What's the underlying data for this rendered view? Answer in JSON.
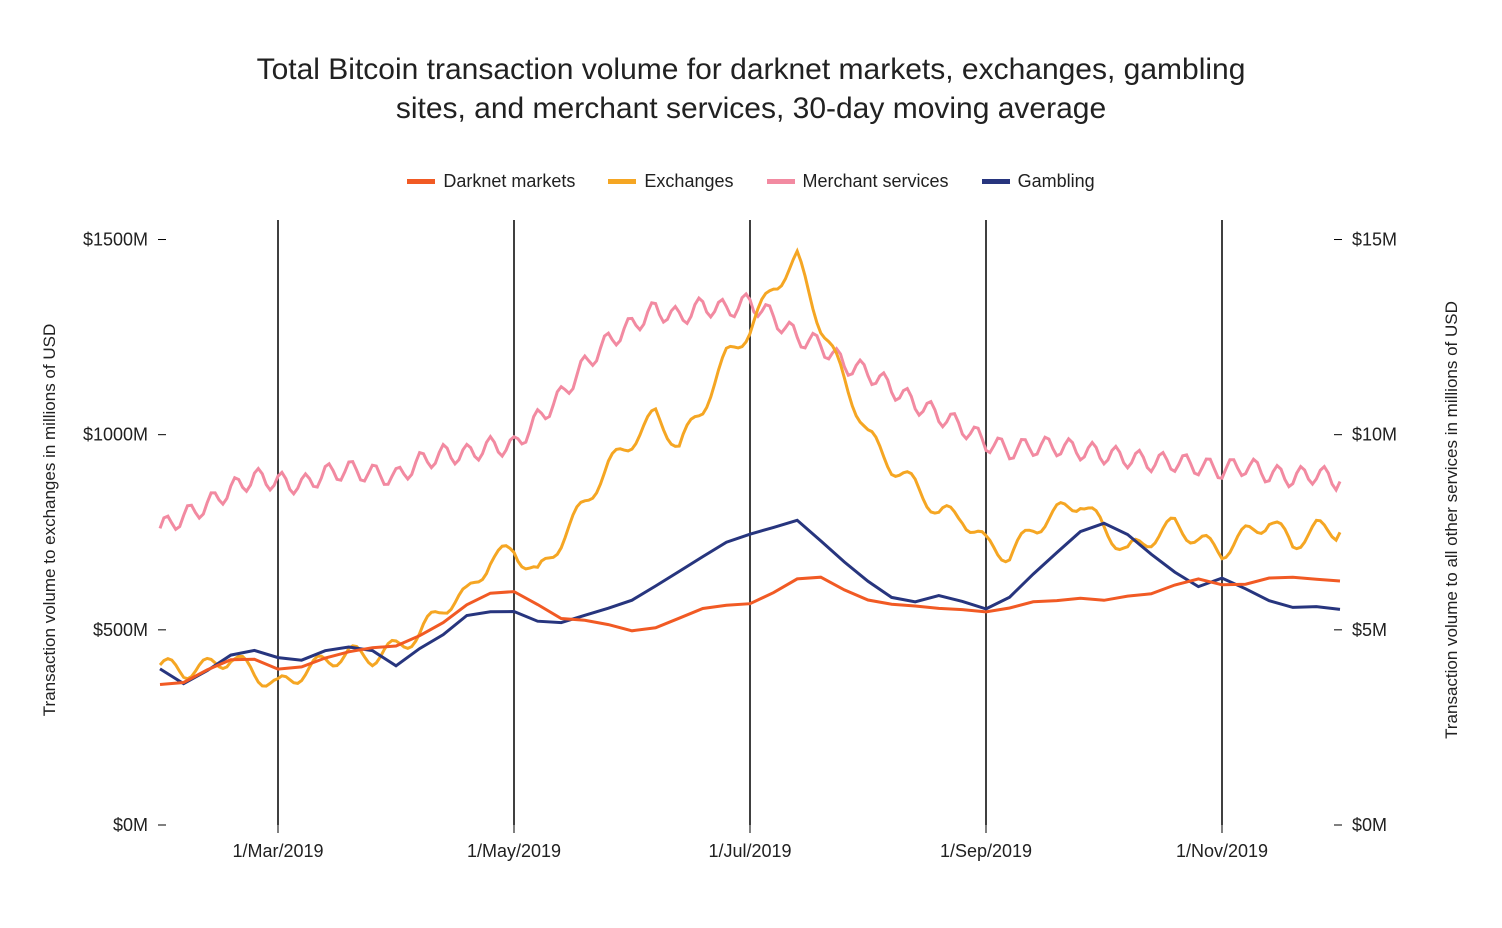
{
  "title_line1": "Total Bitcoin transaction volume for darknet markets, exchanges, gambling",
  "title_line2": "sites, and merchant services, 30-day moving average",
  "legend": {
    "darknet": "Darknet markets",
    "exchanges": "Exchanges",
    "merchant": "Merchant services",
    "gambling": "Gambling"
  },
  "y_left_label": "Transaction  volume to exchanges in millions of USD",
  "y_right_label": "Transaction volume to all other services in millions of USD",
  "chart": {
    "type": "line",
    "background_color": "#ffffff",
    "title_fontsize": 30,
    "legend_fontsize": 18,
    "tick_fontsize": 18,
    "axis_label_fontsize": 17,
    "line_width": 3,
    "grid_vline_color": "#000000",
    "grid_vline_width": 1.5,
    "tick_color": "#000000",
    "colors": {
      "darknet": "#f15a24",
      "exchanges": "#f5a623",
      "merchant": "#f28aa1",
      "gambling": "#27357e"
    },
    "x_ticks": [
      "1/Mar/2019",
      "1/May/2019",
      "1/Jul/2019",
      "1/Sep/2019",
      "1/Nov/2019"
    ],
    "x_tick_idx": [
      10,
      30,
      50,
      70,
      90
    ],
    "x_idx_range": [
      0,
      100
    ],
    "y_left": {
      "min": 0,
      "max": 1550,
      "ticks": [
        0,
        500,
        1000,
        1500
      ],
      "tick_labels": [
        "$0M",
        "$500M",
        "$1000M",
        "$1500M"
      ]
    },
    "y_right": {
      "min": 0,
      "max": 15.5,
      "ticks": [
        0,
        5,
        10,
        15
      ],
      "tick_labels": [
        "$0M",
        "$5M",
        "$10M",
        "$15M"
      ]
    },
    "series": {
      "exchanges": {
        "axis": "left",
        "data": [
          [
            0,
            410
          ],
          [
            2,
            395
          ],
          [
            4,
            405
          ],
          [
            6,
            430
          ],
          [
            8,
            390
          ],
          [
            10,
            355
          ],
          [
            12,
            390
          ],
          [
            14,
            420
          ],
          [
            16,
            440
          ],
          [
            18,
            430
          ],
          [
            20,
            455
          ],
          [
            22,
            490
          ],
          [
            24,
            560
          ],
          [
            26,
            590
          ],
          [
            28,
            680
          ],
          [
            30,
            705
          ],
          [
            32,
            640
          ],
          [
            34,
            730
          ],
          [
            36,
            825
          ],
          [
            38,
            920
          ],
          [
            40,
            985
          ],
          [
            42,
            1050
          ],
          [
            44,
            970
          ],
          [
            46,
            1070
          ],
          [
            48,
            1200
          ],
          [
            50,
            1270
          ],
          [
            52,
            1380
          ],
          [
            54,
            1450
          ],
          [
            56,
            1280
          ],
          [
            58,
            1140
          ],
          [
            60,
            1000
          ],
          [
            62,
            920
          ],
          [
            64,
            870
          ],
          [
            66,
            800
          ],
          [
            68,
            790
          ],
          [
            70,
            720
          ],
          [
            72,
            690
          ],
          [
            74,
            760
          ],
          [
            76,
            800
          ],
          [
            78,
            830
          ],
          [
            80,
            760
          ],
          [
            82,
            700
          ],
          [
            84,
            735
          ],
          [
            86,
            770
          ],
          [
            88,
            730
          ],
          [
            90,
            700
          ],
          [
            92,
            745
          ],
          [
            94,
            780
          ],
          [
            96,
            720
          ],
          [
            98,
            760
          ],
          [
            100,
            750
          ]
        ]
      },
      "merchant": {
        "axis": "right",
        "data": [
          [
            0,
            7.6
          ],
          [
            2,
            7.9
          ],
          [
            4,
            8.2
          ],
          [
            6,
            8.6
          ],
          [
            8,
            8.9
          ],
          [
            10,
            8.8
          ],
          [
            12,
            8.7
          ],
          [
            14,
            9.0
          ],
          [
            16,
            9.1
          ],
          [
            18,
            9.0
          ],
          [
            20,
            8.9
          ],
          [
            22,
            9.3
          ],
          [
            24,
            9.5
          ],
          [
            26,
            9.5
          ],
          [
            28,
            9.7
          ],
          [
            30,
            9.7
          ],
          [
            32,
            10.4
          ],
          [
            34,
            11.0
          ],
          [
            36,
            11.8
          ],
          [
            38,
            12.4
          ],
          [
            40,
            12.8
          ],
          [
            42,
            13.2
          ],
          [
            44,
            13.0
          ],
          [
            46,
            13.3
          ],
          [
            48,
            13.2
          ],
          [
            50,
            13.4
          ],
          [
            52,
            13.0
          ],
          [
            54,
            12.5
          ],
          [
            56,
            12.3
          ],
          [
            58,
            11.8
          ],
          [
            60,
            11.6
          ],
          [
            62,
            11.2
          ],
          [
            64,
            10.8
          ],
          [
            66,
            10.5
          ],
          [
            68,
            10.2
          ],
          [
            70,
            9.8
          ],
          [
            72,
            9.6
          ],
          [
            74,
            9.7
          ],
          [
            76,
            9.7
          ],
          [
            78,
            9.6
          ],
          [
            80,
            9.5
          ],
          [
            82,
            9.4
          ],
          [
            84,
            9.3
          ],
          [
            86,
            9.3
          ],
          [
            88,
            9.2
          ],
          [
            90,
            9.1
          ],
          [
            92,
            9.2
          ],
          [
            94,
            9.0
          ],
          [
            96,
            8.9
          ],
          [
            98,
            9.0
          ],
          [
            100,
            8.8
          ]
        ]
      },
      "gambling": {
        "axis": "right",
        "data": [
          [
            0,
            4.0
          ],
          [
            2,
            3.7
          ],
          [
            4,
            4.0
          ],
          [
            6,
            4.3
          ],
          [
            8,
            4.4
          ],
          [
            10,
            4.3
          ],
          [
            12,
            4.3
          ],
          [
            14,
            4.5
          ],
          [
            16,
            4.5
          ],
          [
            18,
            4.4
          ],
          [
            20,
            4.1
          ],
          [
            22,
            4.6
          ],
          [
            24,
            4.9
          ],
          [
            26,
            5.3
          ],
          [
            28,
            5.4
          ],
          [
            30,
            5.5
          ],
          [
            32,
            5.3
          ],
          [
            34,
            5.2
          ],
          [
            36,
            5.3
          ],
          [
            38,
            5.5
          ],
          [
            40,
            5.8
          ],
          [
            42,
            6.2
          ],
          [
            44,
            6.5
          ],
          [
            46,
            6.8
          ],
          [
            48,
            7.2
          ],
          [
            50,
            7.5
          ],
          [
            52,
            7.7
          ],
          [
            54,
            7.8
          ],
          [
            56,
            7.2
          ],
          [
            58,
            6.7
          ],
          [
            60,
            6.3
          ],
          [
            62,
            5.9
          ],
          [
            64,
            5.7
          ],
          [
            66,
            5.8
          ],
          [
            68,
            5.7
          ],
          [
            70,
            5.6
          ],
          [
            72,
            5.9
          ],
          [
            74,
            6.4
          ],
          [
            76,
            6.9
          ],
          [
            78,
            7.5
          ],
          [
            80,
            7.8
          ],
          [
            82,
            7.5
          ],
          [
            84,
            6.9
          ],
          [
            86,
            6.4
          ],
          [
            88,
            6.1
          ],
          [
            90,
            6.4
          ],
          [
            92,
            6.1
          ],
          [
            94,
            5.7
          ],
          [
            96,
            5.5
          ],
          [
            98,
            5.6
          ],
          [
            100,
            5.6
          ]
        ]
      },
      "darknet": {
        "axis": "right",
        "data": [
          [
            0,
            3.6
          ],
          [
            2,
            3.7
          ],
          [
            4,
            4.0
          ],
          [
            6,
            4.2
          ],
          [
            8,
            4.2
          ],
          [
            10,
            4.0
          ],
          [
            12,
            4.1
          ],
          [
            14,
            4.3
          ],
          [
            16,
            4.4
          ],
          [
            18,
            4.5
          ],
          [
            20,
            4.6
          ],
          [
            22,
            4.9
          ],
          [
            24,
            5.2
          ],
          [
            26,
            5.6
          ],
          [
            28,
            5.9
          ],
          [
            30,
            6.0
          ],
          [
            32,
            5.7
          ],
          [
            34,
            5.3
          ],
          [
            36,
            5.2
          ],
          [
            38,
            5.1
          ],
          [
            40,
            5.0
          ],
          [
            42,
            5.1
          ],
          [
            44,
            5.3
          ],
          [
            46,
            5.5
          ],
          [
            48,
            5.6
          ],
          [
            50,
            5.7
          ],
          [
            52,
            6.0
          ],
          [
            54,
            6.3
          ],
          [
            56,
            6.3
          ],
          [
            58,
            6.0
          ],
          [
            60,
            5.8
          ],
          [
            62,
            5.7
          ],
          [
            64,
            5.6
          ],
          [
            66,
            5.5
          ],
          [
            68,
            5.5
          ],
          [
            70,
            5.5
          ],
          [
            72,
            5.6
          ],
          [
            74,
            5.7
          ],
          [
            76,
            5.7
          ],
          [
            78,
            5.8
          ],
          [
            80,
            5.8
          ],
          [
            82,
            5.9
          ],
          [
            84,
            5.9
          ],
          [
            86,
            6.1
          ],
          [
            88,
            6.3
          ],
          [
            90,
            6.2
          ],
          [
            92,
            6.2
          ],
          [
            94,
            6.3
          ],
          [
            96,
            6.3
          ],
          [
            98,
            6.3
          ],
          [
            100,
            6.3
          ]
        ]
      }
    }
  }
}
